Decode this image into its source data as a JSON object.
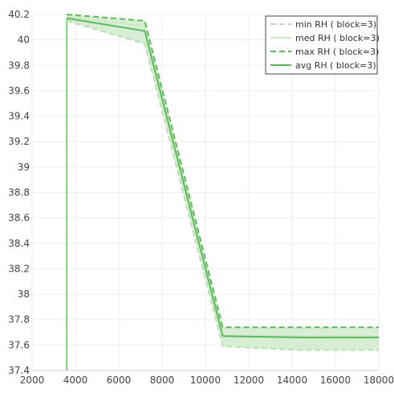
{
  "chart_data": {
    "type": "line",
    "xlim": [
      2000,
      18000
    ],
    "ylim": [
      37.4,
      40.2
    ],
    "x_ticks": [
      "2000",
      "4000",
      "6000",
      "8000",
      "10000",
      "12000",
      "14000",
      "16000",
      "18000"
    ],
    "y_ticks": [
      "37.4",
      "37.6",
      "37.8",
      "38",
      "38.2",
      "38.4",
      "38.6",
      "38.8",
      "39",
      "39.2",
      "39.4",
      "39.6",
      "39.8",
      "40",
      "40.2"
    ],
    "grid": true,
    "legend_position": "top-right",
    "colors": {
      "min": "#b8e0b0",
      "med": "#cdeac6",
      "max": "#5cb85c",
      "avg": "#5cb85c",
      "band": "#d3ecd0",
      "vertical": "#7fd17f"
    },
    "vertical_line_x": 3600,
    "series": [
      {
        "name": "min RH ( block=3)",
        "style": "dashed-light",
        "x": [
          3600,
          7200,
          10800,
          14400,
          18000
        ],
        "y": [
          40.15,
          39.97,
          37.59,
          37.56,
          37.56
        ]
      },
      {
        "name": "med RH ( block=3)",
        "style": "solid-light",
        "x": [
          3600,
          7200,
          10800,
          14400,
          18000
        ],
        "y": [
          40.18,
          40.11,
          37.68,
          37.67,
          37.67
        ]
      },
      {
        "name": "max RH ( block=3)",
        "style": "dashed",
        "x": [
          3600,
          7200,
          10800,
          14400,
          18000
        ],
        "y": [
          40.2,
          40.15,
          37.74,
          37.74,
          37.74
        ]
      },
      {
        "name": "avg RH ( block=3)",
        "style": "solid",
        "x": [
          3600,
          7200,
          10800,
          14400,
          18000
        ],
        "y": [
          40.17,
          40.07,
          37.67,
          37.66,
          37.66
        ]
      }
    ]
  }
}
